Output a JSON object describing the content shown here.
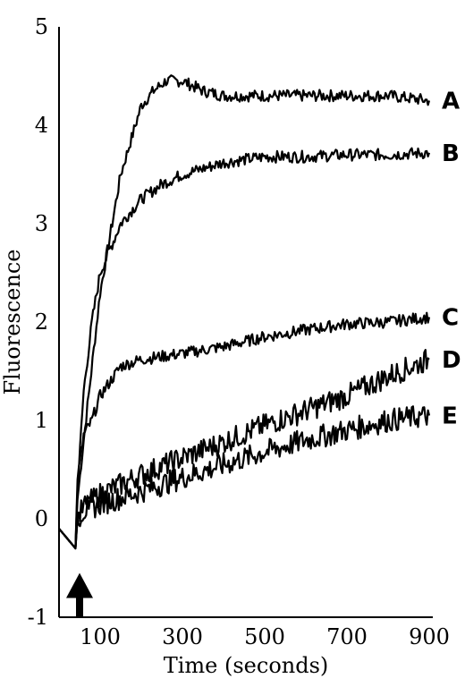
{
  "chart_data": {
    "type": "line",
    "title": "",
    "xlabel": "Time (seconds)",
    "ylabel": "Fluorescence",
    "xlim": [
      0,
      900
    ],
    "ylim": [
      -1,
      5
    ],
    "xticks": [
      100,
      300,
      500,
      700,
      900
    ],
    "yticks": [
      -1,
      0,
      1,
      2,
      3,
      4,
      5
    ],
    "grid": false,
    "annotations": [
      {
        "type": "arrow",
        "direction": "up",
        "x": 50,
        "y_from": -1,
        "y_to": -0.55
      }
    ],
    "series": [
      {
        "name": "A",
        "x": [
          0,
          20,
          40,
          45,
          60,
          100,
          150,
          200,
          230,
          260,
          300,
          350,
          400,
          500,
          600,
          700,
          800,
          900
        ],
        "y": [
          -0.1,
          -0.2,
          -0.3,
          0.2,
          0.8,
          2.3,
          3.5,
          4.2,
          4.35,
          4.45,
          4.45,
          4.35,
          4.3,
          4.3,
          4.3,
          4.3,
          4.3,
          4.25
        ]
      },
      {
        "name": "B",
        "x": [
          0,
          20,
          40,
          45,
          60,
          80,
          100,
          150,
          200,
          250,
          300,
          400,
          500,
          600,
          700,
          800,
          900
        ],
        "y": [
          -0.1,
          -0.2,
          -0.3,
          0.3,
          1.3,
          2.0,
          2.5,
          3.0,
          3.25,
          3.4,
          3.5,
          3.62,
          3.68,
          3.68,
          3.7,
          3.7,
          3.72
        ]
      },
      {
        "name": "C",
        "x": [
          0,
          20,
          40,
          45,
          60,
          80,
          100,
          150,
          200,
          300,
          400,
          500,
          600,
          700,
          800,
          900
        ],
        "y": [
          -0.1,
          -0.2,
          -0.3,
          0.4,
          0.85,
          1.0,
          1.25,
          1.55,
          1.62,
          1.68,
          1.75,
          1.85,
          1.92,
          1.98,
          2.0,
          2.05
        ]
      },
      {
        "name": "D",
        "x": [
          0,
          20,
          40,
          45,
          60,
          100,
          200,
          300,
          400,
          500,
          600,
          700,
          800,
          900
        ],
        "y": [
          -0.1,
          -0.2,
          -0.3,
          0.0,
          0.12,
          0.25,
          0.45,
          0.62,
          0.78,
          0.95,
          1.1,
          1.25,
          1.45,
          1.62
        ]
      },
      {
        "name": "E",
        "x": [
          0,
          20,
          40,
          45,
          60,
          100,
          200,
          300,
          400,
          500,
          600,
          700,
          800,
          900
        ],
        "y": [
          -0.1,
          -0.2,
          -0.3,
          0.0,
          0.08,
          0.15,
          0.28,
          0.42,
          0.55,
          0.68,
          0.8,
          0.9,
          1.0,
          1.05
        ]
      }
    ]
  }
}
